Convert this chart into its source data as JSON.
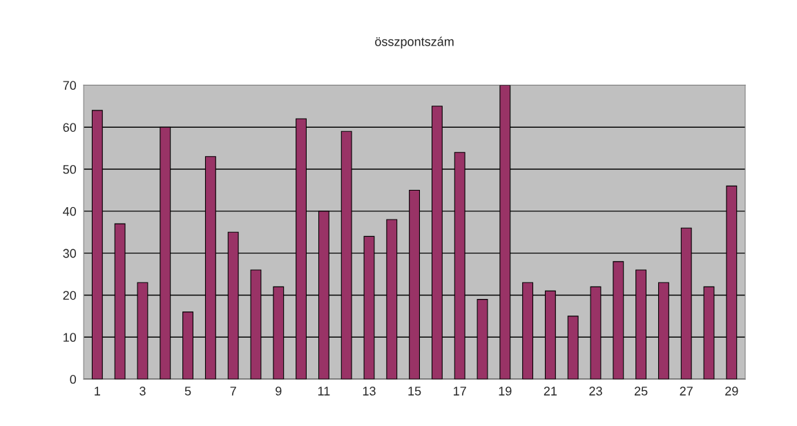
{
  "chart_data": {
    "type": "bar",
    "title": "összpontszám",
    "categories": [
      "1",
      null,
      "3",
      null,
      "5",
      null,
      "7",
      null,
      "9",
      null,
      "11",
      null,
      "13",
      null,
      "15",
      null,
      "17",
      null,
      "19",
      null,
      "21",
      null,
      "23",
      null,
      "25",
      null,
      "27",
      null,
      "29"
    ],
    "values": [
      64,
      37,
      23,
      60,
      16,
      53,
      35,
      26,
      22,
      62,
      40,
      59,
      34,
      38,
      45,
      65,
      54,
      19,
      70,
      23,
      21,
      15,
      22,
      28,
      26,
      23,
      36,
      22,
      46
    ],
    "color": "#993366",
    "ylim": [
      0,
      70
    ],
    "yticks": [
      0,
      10,
      20,
      30,
      40,
      50,
      60,
      70
    ],
    "grid": "y"
  }
}
